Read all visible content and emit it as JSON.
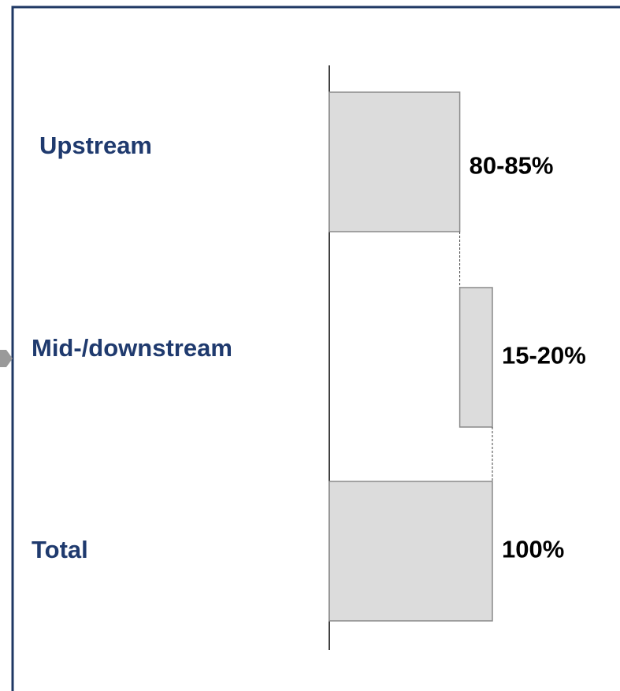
{
  "chart_data": {
    "type": "waterfall",
    "categories": [
      "Upstream",
      "Mid-/downstream",
      "Total"
    ],
    "values": [
      80,
      20,
      100
    ],
    "value_labels": [
      "80-85%",
      "15-20%",
      "100%"
    ],
    "total": [
      false,
      false,
      true
    ],
    "color": "#dcdcdc",
    "xlim": [
      0,
      100
    ]
  }
}
